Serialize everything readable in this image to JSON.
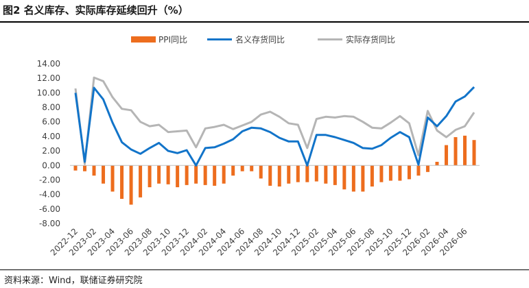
{
  "figure": {
    "title": "图2  名义库存、实际库存延续回升（%）",
    "source": "资料来源：Wind，联储证券研究院"
  },
  "chart_data": {
    "type": "bar+line",
    "colors": {
      "bar": "#ED6D1E",
      "line_nominal": "#1274C9",
      "line_real": "#B5B5B5"
    },
    "legend": [
      "PPI同比",
      "名义存货同比",
      "实际存货同比"
    ],
    "legend_position": "top-center",
    "y_ticks": [
      "14.00",
      "12.00",
      "10.00",
      "8.00",
      "6.00",
      "4.00",
      "2.00",
      "0.00",
      "-2.00",
      "-4.00",
      "-6.00",
      "-8.00"
    ],
    "ylim": [
      -8,
      14
    ],
    "grid": false,
    "x_tick_labels": [
      "2022-12",
      "2023-02",
      "2023-04",
      "2023-06",
      "2023-08",
      "2023-10",
      "2023-12",
      "2024-02",
      "2024-04",
      "2024-06",
      "2024-08",
      "2024-10",
      "2024-12",
      "2025-02",
      "2025-04",
      "2025-06",
      "2025-08",
      "2025-10",
      "2025-12",
      "2026-02",
      "2026-04",
      "2026-06"
    ],
    "categories": [
      "2022-12",
      "2023-01",
      "2023-02",
      "2023-03",
      "2023-04",
      "2023-05",
      "2023-06",
      "2023-07",
      "2023-08",
      "2023-09",
      "2023-10",
      "2023-11",
      "2023-12",
      "2024-01",
      "2024-02",
      "2024-03",
      "2024-04",
      "2024-05",
      "2024-06",
      "2024-07",
      "2024-08",
      "2024-09",
      "2024-10",
      "2024-11",
      "2024-12",
      "2025-01",
      "2025-02",
      "2025-03",
      "2025-04",
      "2025-05",
      "2025-06",
      "2025-07",
      "2025-08",
      "2025-09",
      "2025-10",
      "2025-11",
      "2025-12",
      "2026-01",
      "2026-02",
      "2026-03",
      "2026-04",
      "2026-05",
      "2026-06",
      "2026-07"
    ],
    "series": [
      {
        "name": "PPI同比",
        "kind": "bar",
        "values": [
          -0.7,
          -0.8,
          -1.4,
          -2.5,
          -3.6,
          -4.6,
          -5.4,
          -4.4,
          -3.0,
          -2.5,
          -2.6,
          -3.0,
          -2.7,
          -2.5,
          -2.7,
          -2.8,
          -2.5,
          -1.4,
          -0.8,
          -0.8,
          -1.8,
          -2.8,
          -2.9,
          -2.5,
          -2.3,
          -2.3,
          -2.2,
          -2.5,
          -2.7,
          -3.3,
          -3.6,
          -3.6,
          -2.9,
          -2.3,
          -2.1,
          -2.1,
          -1.9,
          -1.4,
          -0.9,
          0.5,
          2.8,
          3.9,
          4.1,
          3.5
        ]
      },
      {
        "name": "名义存货同比",
        "kind": "line",
        "values": [
          10.0,
          0.5,
          10.7,
          9.1,
          5.9,
          3.2,
          2.2,
          1.6,
          2.4,
          3.1,
          2.0,
          1.7,
          2.1,
          0.0,
          2.4,
          2.5,
          3.0,
          3.6,
          4.7,
          5.2,
          5.1,
          4.6,
          3.8,
          3.3,
          3.3,
          0.0,
          4.2,
          4.2,
          3.9,
          3.5,
          3.1,
          2.4,
          2.3,
          2.8,
          3.8,
          4.6,
          3.9,
          0.1,
          6.6,
          5.4,
          6.8,
          8.8,
          9.5,
          10.8
        ]
      },
      {
        "name": "实际存货同比",
        "kind": "line",
        "values": [
          10.6,
          0.2,
          12.1,
          11.6,
          9.4,
          7.8,
          7.6,
          6.0,
          5.4,
          5.6,
          4.6,
          4.7,
          4.8,
          2.5,
          5.1,
          5.3,
          5.6,
          5.0,
          5.5,
          6.0,
          7.0,
          7.4,
          6.7,
          5.8,
          5.6,
          2.4,
          6.4,
          6.7,
          6.6,
          6.8,
          6.7,
          6.0,
          5.2,
          5.1,
          5.9,
          6.8,
          5.8,
          1.4,
          7.5,
          4.8,
          3.9,
          4.9,
          5.4,
          7.3
        ]
      }
    ]
  }
}
